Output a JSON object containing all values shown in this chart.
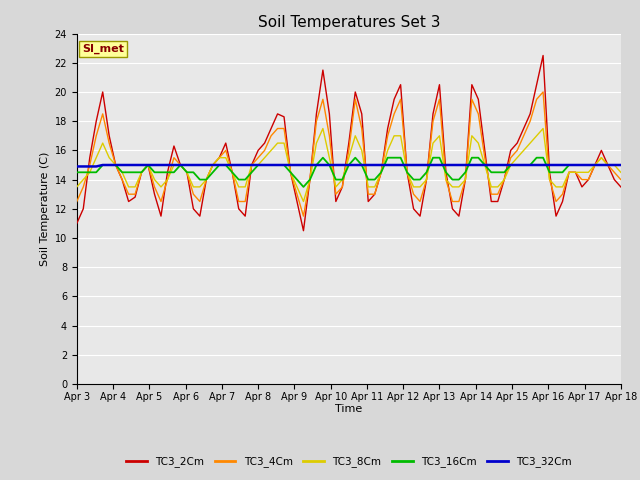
{
  "title": "Soil Temperatures Set 3",
  "xlabel": "Time",
  "ylabel": "Soil Temperature (C)",
  "ylim": [
    0,
    24
  ],
  "yticks": [
    0,
    2,
    4,
    6,
    8,
    10,
    12,
    14,
    16,
    18,
    20,
    22,
    24
  ],
  "xtick_labels": [
    "Apr 3",
    "Apr 4",
    "Apr 5",
    "Apr 6",
    "Apr 7",
    "Apr 8",
    "Apr 9",
    "Apr 10",
    "Apr 11",
    "Apr 12",
    "Apr 13",
    "Apr 14",
    "Apr 15",
    "Apr 16",
    "Apr 17",
    "Apr 18"
  ],
  "series_colors": [
    "#cc0000",
    "#ff8800",
    "#ddcc00",
    "#00bb00",
    "#0000cc"
  ],
  "series_names": [
    "TC3_2Cm",
    "TC3_4Cm",
    "TC3_8Cm",
    "TC3_16Cm",
    "TC3_32Cm"
  ],
  "background_color": "#e8e8e8",
  "grid_color": "#ffffff",
  "annotation_text": "SI_met",
  "annotation_bg": "#ffff99",
  "annotation_border": "#999900",
  "TC3_2Cm": [
    11.0,
    12.0,
    15.5,
    18.0,
    20.0,
    17.0,
    15.0,
    14.0,
    12.5,
    12.8,
    14.5,
    15.0,
    13.0,
    11.5,
    14.5,
    16.3,
    15.0,
    14.5,
    12.0,
    11.5,
    14.0,
    15.0,
    15.5,
    16.5,
    14.5,
    12.0,
    11.5,
    15.0,
    16.0,
    16.5,
    17.5,
    18.5,
    18.3,
    14.5,
    12.5,
    10.5,
    14.0,
    18.5,
    21.5,
    18.5,
    12.5,
    13.5,
    16.5,
    20.0,
    18.5,
    12.5,
    13.0,
    14.5,
    17.5,
    19.5,
    20.5,
    14.5,
    12.0,
    11.5,
    14.0,
    18.5,
    20.5,
    14.5,
    12.0,
    11.5,
    14.0,
    20.5,
    19.5,
    16.0,
    12.5,
    12.5,
    14.0,
    16.0,
    16.5,
    17.5,
    18.5,
    20.5,
    22.5,
    14.5,
    11.5,
    12.5,
    14.5,
    14.5,
    13.5,
    14.0,
    15.0,
    16.0,
    15.0,
    14.0,
    13.5
  ],
  "TC3_4Cm": [
    12.5,
    13.5,
    15.0,
    17.0,
    18.5,
    16.5,
    15.0,
    14.0,
    13.0,
    13.0,
    14.5,
    15.0,
    13.5,
    12.5,
    14.0,
    15.5,
    15.0,
    14.5,
    13.0,
    12.5,
    14.0,
    15.0,
    15.5,
    16.0,
    14.5,
    12.5,
    12.5,
    15.0,
    15.5,
    16.0,
    17.0,
    17.5,
    17.5,
    14.5,
    13.0,
    11.5,
    14.0,
    18.0,
    19.5,
    17.0,
    13.0,
    13.5,
    16.0,
    19.5,
    17.5,
    13.0,
    13.0,
    14.5,
    17.0,
    18.5,
    19.5,
    14.5,
    13.0,
    12.5,
    14.0,
    18.0,
    19.5,
    14.0,
    12.5,
    12.5,
    14.0,
    19.5,
    18.5,
    15.5,
    13.0,
    13.0,
    14.0,
    15.5,
    16.0,
    17.0,
    18.0,
    19.5,
    20.0,
    14.0,
    12.5,
    13.0,
    14.5,
    14.5,
    14.0,
    14.0,
    15.0,
    15.5,
    15.0,
    14.5,
    14.0
  ],
  "TC3_8Cm": [
    13.5,
    14.0,
    14.5,
    15.5,
    16.5,
    15.5,
    15.0,
    14.5,
    13.5,
    13.5,
    14.5,
    15.0,
    14.0,
    13.5,
    14.0,
    15.0,
    15.0,
    14.5,
    13.5,
    13.5,
    14.0,
    15.0,
    15.5,
    15.5,
    14.5,
    13.5,
    13.5,
    15.0,
    15.0,
    15.5,
    16.0,
    16.5,
    16.5,
    14.5,
    13.5,
    12.5,
    14.0,
    16.5,
    17.5,
    15.5,
    13.5,
    14.0,
    15.5,
    17.0,
    16.0,
    13.5,
    13.5,
    14.5,
    16.0,
    17.0,
    17.0,
    14.5,
    13.5,
    13.5,
    14.0,
    16.5,
    17.0,
    14.0,
    13.5,
    13.5,
    14.0,
    17.0,
    16.5,
    15.0,
    13.5,
    13.5,
    14.0,
    15.0,
    15.5,
    16.0,
    16.5,
    17.0,
    17.5,
    14.0,
    13.5,
    13.5,
    14.5,
    14.5,
    14.5,
    14.5,
    15.0,
    15.5,
    15.0,
    15.0,
    14.5
  ],
  "TC3_16Cm": [
    14.5,
    14.5,
    14.5,
    14.5,
    15.0,
    15.0,
    15.0,
    14.5,
    14.5,
    14.5,
    14.5,
    15.0,
    14.5,
    14.5,
    14.5,
    14.5,
    15.0,
    14.5,
    14.5,
    14.0,
    14.0,
    14.5,
    15.0,
    15.0,
    14.5,
    14.0,
    14.0,
    14.5,
    15.0,
    15.0,
    15.0,
    15.0,
    15.0,
    14.5,
    14.0,
    13.5,
    14.0,
    15.0,
    15.5,
    15.0,
    14.0,
    14.0,
    15.0,
    15.5,
    15.0,
    14.0,
    14.0,
    14.5,
    15.5,
    15.5,
    15.5,
    14.5,
    14.0,
    14.0,
    14.5,
    15.5,
    15.5,
    14.5,
    14.0,
    14.0,
    14.5,
    15.5,
    15.5,
    15.0,
    14.5,
    14.5,
    14.5,
    15.0,
    15.0,
    15.0,
    15.0,
    15.5,
    15.5,
    14.5,
    14.5,
    14.5,
    15.0,
    15.0,
    15.0,
    15.0,
    15.0,
    15.0,
    15.0,
    15.0,
    15.0
  ],
  "TC3_32Cm": [
    14.9,
    14.9,
    14.9,
    14.9,
    15.0,
    15.0,
    15.0,
    15.0,
    15.0,
    15.0,
    15.0,
    15.0,
    15.0,
    15.0,
    15.0,
    15.0,
    15.0,
    15.0,
    15.0,
    15.0,
    15.0,
    15.0,
    15.0,
    15.0,
    15.0,
    15.0,
    15.0,
    15.0,
    15.0,
    15.0,
    15.0,
    15.0,
    15.0,
    15.0,
    15.0,
    15.0,
    15.0,
    15.0,
    15.0,
    15.0,
    15.0,
    15.0,
    15.0,
    15.0,
    15.0,
    15.0,
    15.0,
    15.0,
    15.0,
    15.0,
    15.0,
    15.0,
    15.0,
    15.0,
    15.0,
    15.0,
    15.0,
    15.0,
    15.0,
    15.0,
    15.0,
    15.0,
    15.0,
    15.0,
    15.0,
    15.0,
    15.0,
    15.0,
    15.0,
    15.0,
    15.0,
    15.0,
    15.0,
    15.0,
    15.0,
    15.0,
    15.0,
    15.0,
    15.0,
    15.0,
    15.0,
    15.0,
    15.0,
    15.0,
    15.0
  ]
}
